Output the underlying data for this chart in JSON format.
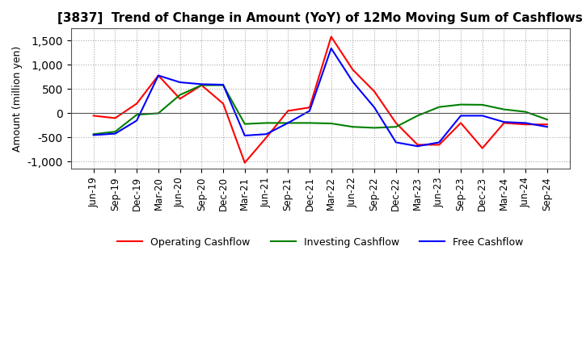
{
  "title": "[3837]  Trend of Change in Amount (YoY) of 12Mo Moving Sum of Cashflows",
  "ylabel": "Amount (million yen)",
  "ylim": [
    -1150,
    1750
  ],
  "yticks": [
    -1000,
    -500,
    0,
    500,
    1000,
    1500
  ],
  "x_labels": [
    "Jun-19",
    "Sep-19",
    "Dec-19",
    "Mar-20",
    "Jun-20",
    "Sep-20",
    "Dec-20",
    "Mar-21",
    "Jun-21",
    "Sep-21",
    "Dec-21",
    "Mar-22",
    "Jun-22",
    "Sep-22",
    "Dec-22",
    "Mar-23",
    "Jun-23",
    "Sep-23",
    "Dec-23",
    "Mar-24",
    "Jun-24",
    "Sep-24"
  ],
  "operating": [
    -50,
    -100,
    200,
    780,
    300,
    580,
    200,
    -1020,
    -500,
    50,
    120,
    1580,
    900,
    450,
    -200,
    -650,
    -650,
    -200,
    -720,
    -200,
    -230,
    -230
  ],
  "investing": [
    -430,
    -380,
    -30,
    0,
    380,
    580,
    580,
    -220,
    -200,
    -200,
    -200,
    -210,
    -280,
    -300,
    -280,
    -50,
    130,
    180,
    175,
    80,
    30,
    -130
  ],
  "free": [
    -450,
    -420,
    -150,
    780,
    640,
    600,
    590,
    -460,
    -430,
    -200,
    50,
    1340,
    650,
    120,
    -600,
    -680,
    -600,
    -50,
    -50,
    -180,
    -200,
    -280
  ],
  "operating_color": "#ff0000",
  "investing_color": "#008000",
  "free_color": "#0000ff",
  "background_color": "#ffffff",
  "grid_color": "#aaaaaa",
  "title_fontsize": 11,
  "label_fontsize": 9,
  "tick_fontsize": 8.5
}
